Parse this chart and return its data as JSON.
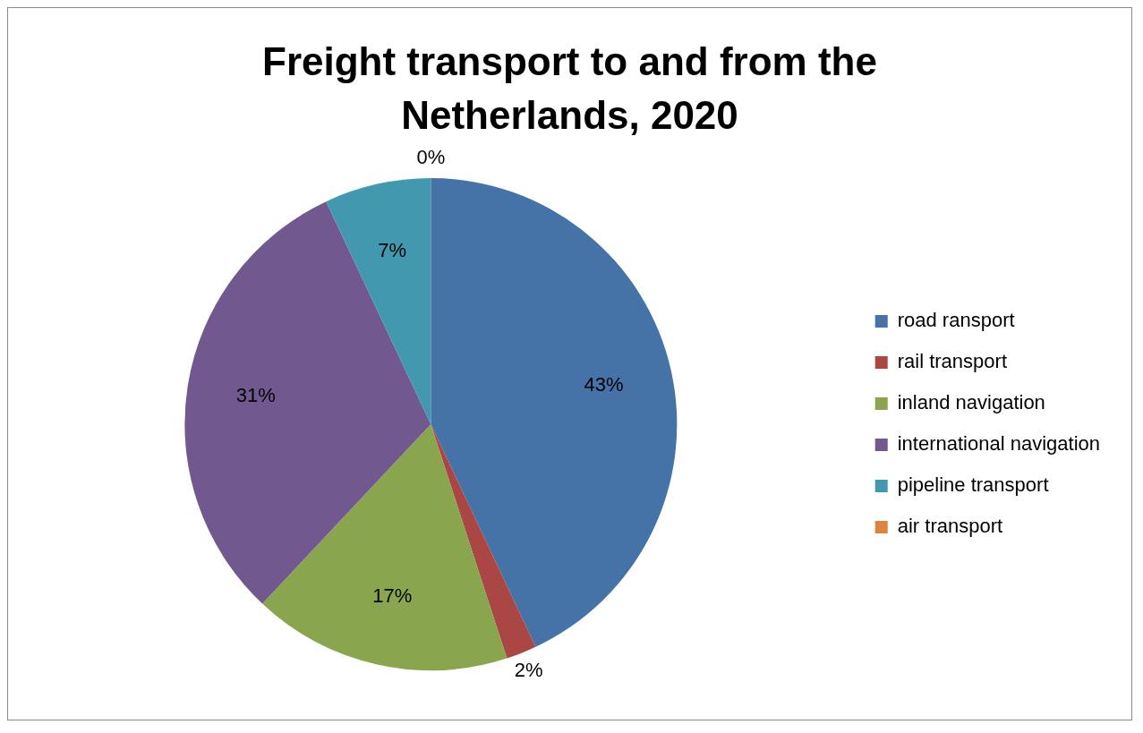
{
  "chart_data": {
    "type": "pie",
    "title": "Freight transport to and from the Netherlands, 2020",
    "categories": [
      "road ransport",
      "rail transport",
      "inland navigation",
      "international navigation",
      "pipeline transport",
      "air transport"
    ],
    "values": [
      43,
      2,
      17,
      31,
      7,
      0
    ],
    "colors": [
      "#4572a7",
      "#aa4643",
      "#89a54e",
      "#71588f",
      "#4198af",
      "#db843d"
    ],
    "value_labels": [
      "43%",
      "2%",
      "17%",
      "31%",
      "7%",
      "0%"
    ],
    "legend": "right"
  }
}
